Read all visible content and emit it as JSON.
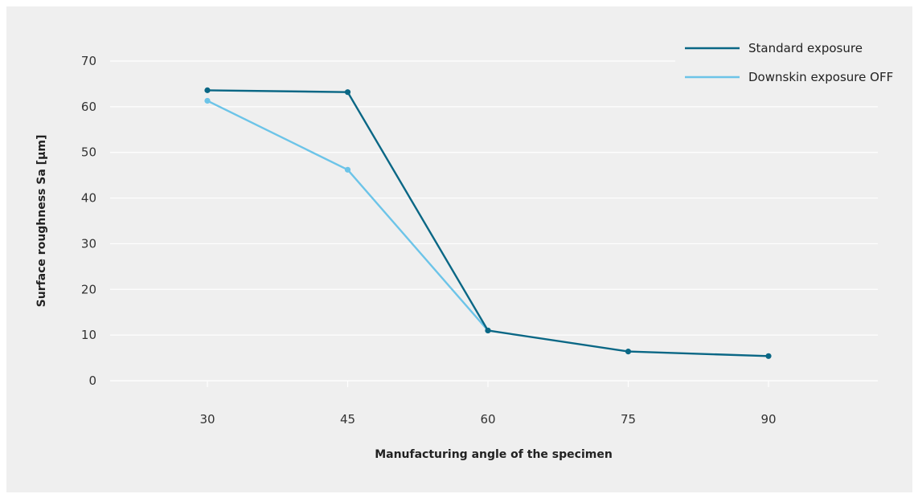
{
  "chart_data": {
    "type": "line",
    "title": "",
    "xlabel": "Manufacturing angle of the specimen",
    "ylabel": "Surface roughness Sa [µm]",
    "categories": [
      "30",
      "45",
      "60",
      "75",
      "90"
    ],
    "x": [
      30,
      45,
      60,
      75,
      90
    ],
    "yticks": [
      "0",
      "10",
      "20",
      "30",
      "40",
      "50",
      "60",
      "70"
    ],
    "ylim": [
      0,
      70
    ],
    "grid": true,
    "legend_position": "top-right",
    "series": [
      {
        "name": "Standard exposure",
        "color": "#0a6785",
        "values": [
          63.6,
          63.2,
          11,
          6.4,
          5.4
        ]
      },
      {
        "name": "Downskin exposure OFF",
        "color": "#6cc4e8",
        "values": [
          61.3,
          46.2,
          11,
          null,
          null
        ]
      }
    ]
  }
}
